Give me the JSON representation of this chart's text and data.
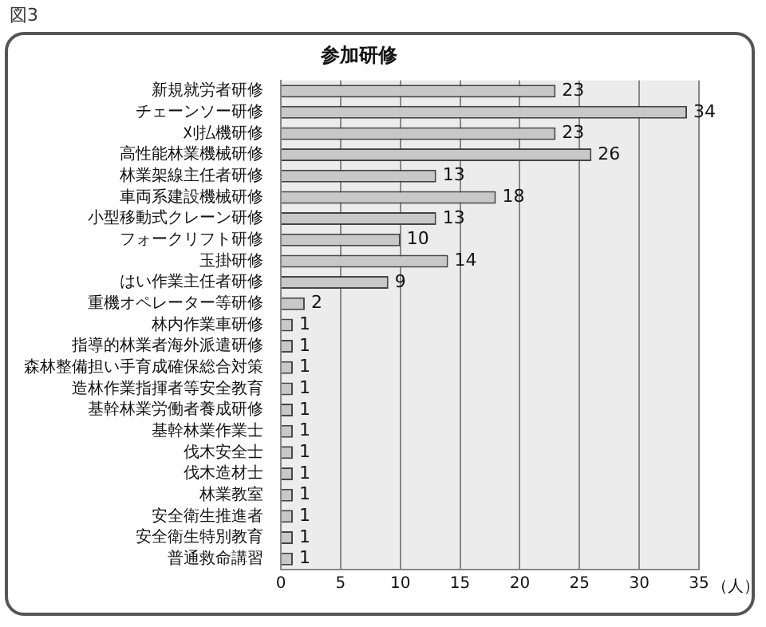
{
  "chart_data": {
    "type": "bar",
    "orientation": "horizontal",
    "title": "参加研修",
    "xlabel": "（人）",
    "annotations": [
      "図3"
    ],
    "categories": [
      "新規就労者研修",
      "チェーンソー研修",
      "刈払機研修",
      "高性能林業機械研修",
      "林業架線主任者研修",
      "車両系建設機械研修",
      "小型移動式クレーン研修",
      "フォークリフト研修",
      "玉掛研修",
      "はい作業主任者研修",
      "重機オペレーター等研修",
      "林内作業車研修",
      "指導的林業者海外派遣研修",
      "森林整備担い手育成確保総合対策",
      "造林作業指揮者等安全教育",
      "基幹林業労働者養成研修",
      "基幹林業作業士",
      "伐木安全士",
      "伐木造材士",
      "林業教室",
      "安全衛生推進者",
      "安全衛生特別教育",
      "普通救命講習"
    ],
    "values": [
      23,
      34,
      23,
      26,
      13,
      18,
      13,
      10,
      14,
      9,
      2,
      1,
      1,
      1,
      1,
      1,
      1,
      1,
      1,
      1,
      1,
      1,
      1
    ],
    "color": "#c8c8c8",
    "xlim": [
      0,
      35
    ],
    "xticks": [
      0,
      5,
      10,
      15,
      20,
      25,
      30,
      35
    ],
    "grid": "x",
    "data_labels": true,
    "legend": false
  }
}
